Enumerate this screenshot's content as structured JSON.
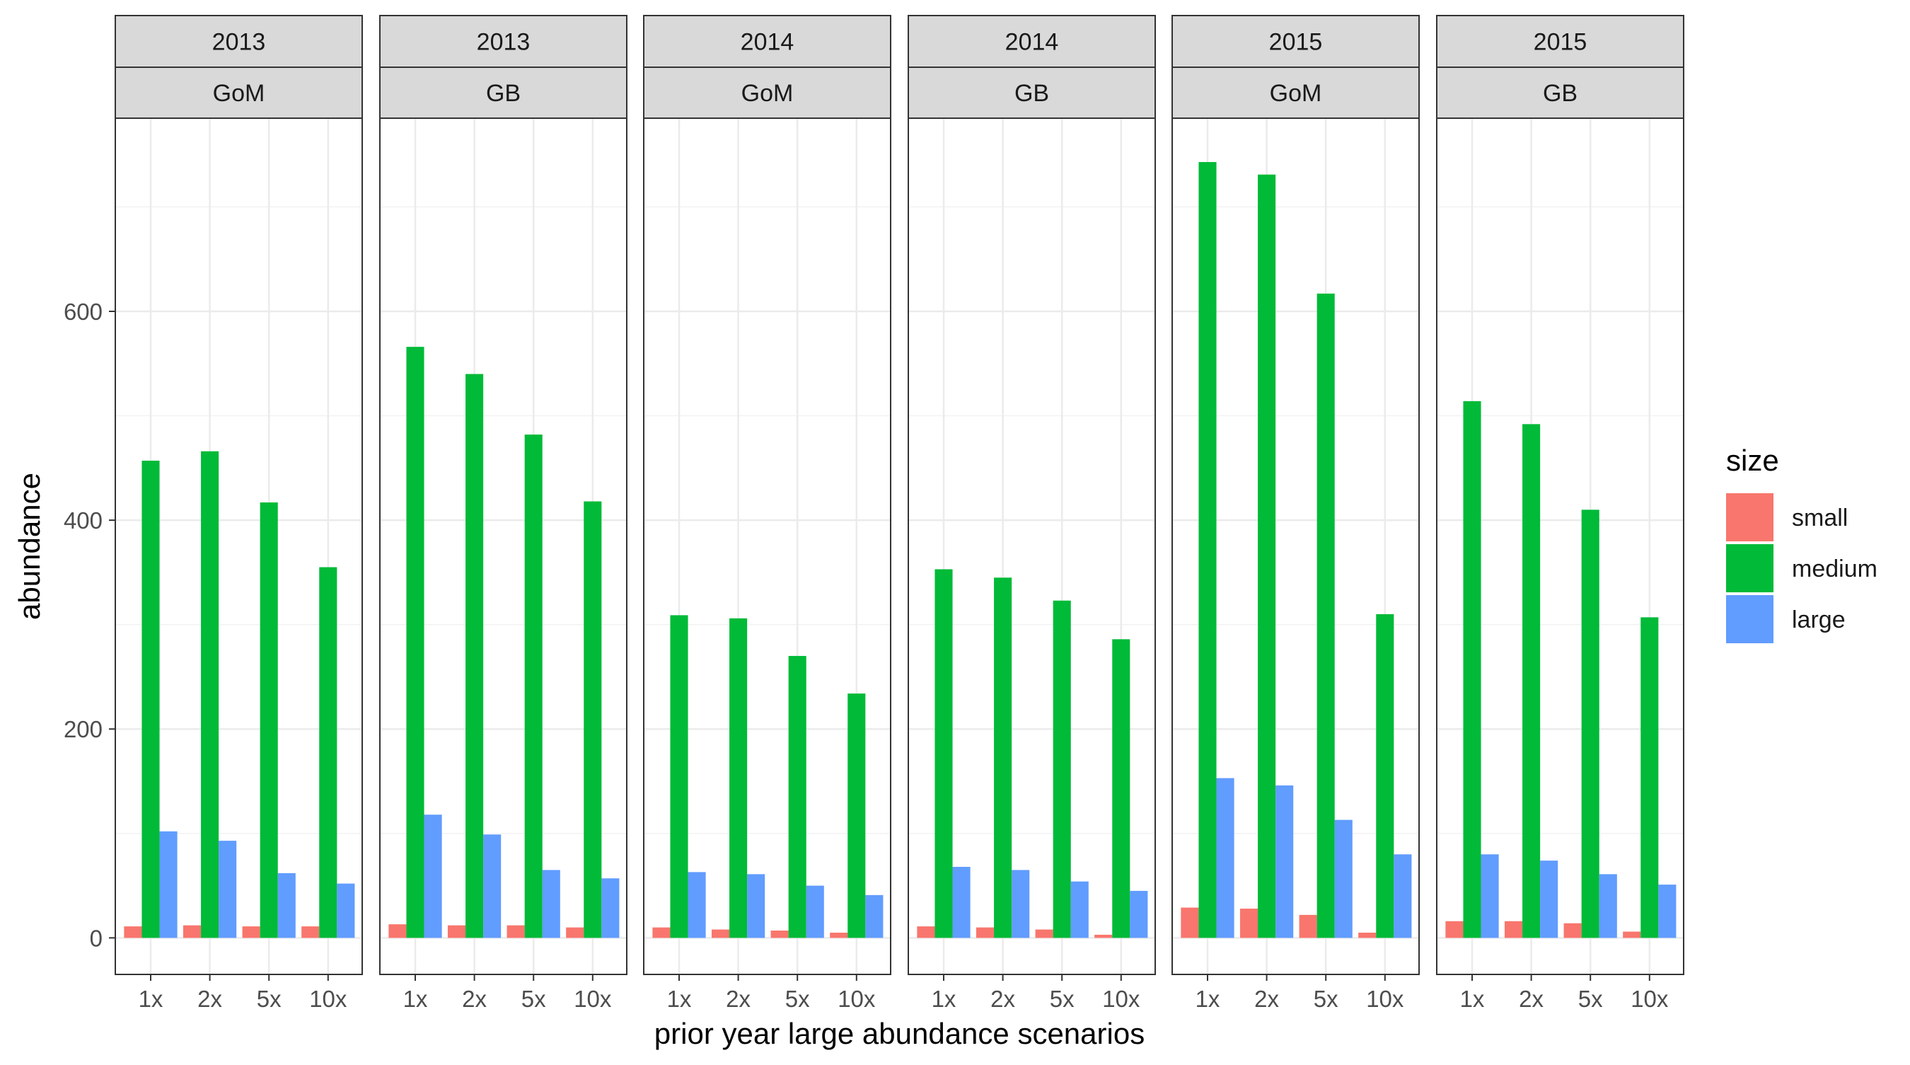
{
  "chart_data": {
    "type": "bar",
    "facet_layout": "1 row x 6 columns, two-level strip labels (year / region)",
    "xlabel": "prior year large abundance scenarios",
    "ylabel": "abundance",
    "categories": [
      "1x",
      "2x",
      "5x",
      "10x"
    ],
    "ylim": [
      -35,
      785
    ],
    "yticks": [
      0,
      200,
      400,
      600
    ],
    "grid": true,
    "legend": {
      "title": "size",
      "position": "right",
      "entries": [
        "small",
        "medium",
        "large"
      ]
    },
    "colors": {
      "small": "#F8766D",
      "medium": "#00BA38",
      "large": "#619CFF"
    },
    "panels": [
      {
        "year": "2013",
        "region": "GoM",
        "series": [
          {
            "name": "small",
            "values": [
              11,
              12,
              11,
              11
            ]
          },
          {
            "name": "medium",
            "values": [
              457,
              466,
              417,
              355
            ]
          },
          {
            "name": "large",
            "values": [
              102,
              93,
              62,
              52
            ]
          }
        ]
      },
      {
        "year": "2013",
        "region": "GB",
        "series": [
          {
            "name": "small",
            "values": [
              13,
              12,
              12,
              10
            ]
          },
          {
            "name": "medium",
            "values": [
              566,
              540,
              482,
              418
            ]
          },
          {
            "name": "large",
            "values": [
              118,
              99,
              65,
              57
            ]
          }
        ]
      },
      {
        "year": "2014",
        "region": "GoM",
        "series": [
          {
            "name": "small",
            "values": [
              10,
              8,
              7,
              5
            ]
          },
          {
            "name": "medium",
            "values": [
              309,
              306,
              270,
              234
            ]
          },
          {
            "name": "large",
            "values": [
              63,
              61,
              50,
              41
            ]
          }
        ]
      },
      {
        "year": "2014",
        "region": "GB",
        "series": [
          {
            "name": "small",
            "values": [
              11,
              10,
              8,
              3
            ]
          },
          {
            "name": "medium",
            "values": [
              353,
              345,
              323,
              286
            ]
          },
          {
            "name": "large",
            "values": [
              68,
              65,
              54,
              45
            ]
          }
        ]
      },
      {
        "year": "2015",
        "region": "GoM",
        "series": [
          {
            "name": "small",
            "values": [
              29,
              28,
              22,
              5
            ]
          },
          {
            "name": "medium",
            "values": [
              743,
              731,
              617,
              310
            ]
          },
          {
            "name": "large",
            "values": [
              153,
              146,
              113,
              80
            ]
          }
        ]
      },
      {
        "year": "2015",
        "region": "GB",
        "series": [
          {
            "name": "small",
            "values": [
              16,
              16,
              14,
              6
            ]
          },
          {
            "name": "medium",
            "values": [
              514,
              492,
              410,
              307
            ]
          },
          {
            "name": "large",
            "values": [
              80,
              74,
              61,
              51
            ]
          }
        ]
      }
    ]
  }
}
